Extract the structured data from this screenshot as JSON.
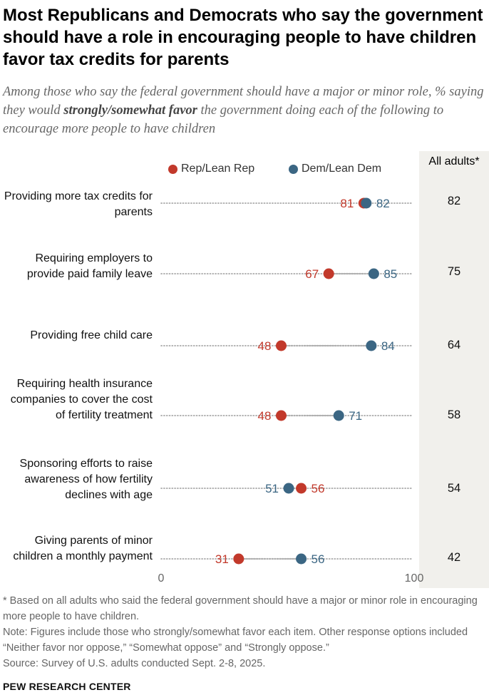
{
  "title": "Most Republicans and Democrats who say the government should have a role in encouraging people to have children favor tax credits for parents",
  "subtitle": {
    "before": "Among those who say the federal government should have a major or minor role, % saying they would ",
    "emphasis": "strongly/somewhat favor",
    "after": " the government doing each of the following to encourage more people to have children"
  },
  "all_adults_header": "All adults*",
  "colors": {
    "rep": "#c2392b",
    "dem": "#3b6683",
    "axis_dots": "#9a9a9a",
    "panel": "#f1f0ec"
  },
  "chart_data": {
    "type": "dot",
    "categories": [
      "Providing more tax credits for parents",
      "Requiring employers to provide paid family leave",
      "Providing free child care",
      "Requiring health insurance companies to cover the cost of fertility treatment",
      "Sponsoring efforts to raise awareness of how fertility declines with age",
      "Giving parents of minor children a monthly payment"
    ],
    "series": [
      {
        "name": "Rep/Lean Rep",
        "values": [
          81,
          67,
          48,
          48,
          56,
          31
        ]
      },
      {
        "name": "Dem/Lean Dem",
        "values": [
          82,
          85,
          84,
          71,
          51,
          56
        ]
      }
    ],
    "all_adults": [
      82,
      75,
      64,
      58,
      54,
      42
    ],
    "xlim": [
      0,
      100
    ],
    "xticks": [
      "0",
      "100"
    ],
    "legend_position": "top",
    "grid": false
  },
  "notes": {
    "footnote": "* Based on all adults who said the federal government should have a major or minor role in encouraging more people to have children.",
    "note": "Note: Figures include those who strongly/somewhat favor each item. Other response options included “Neither favor nor oppose,” “Somewhat oppose” and “Strongly oppose.”",
    "source": "Source: Survey of U.S. adults conducted Sept. 2-8, 2025."
  },
  "brand": "PEW RESEARCH CENTER"
}
